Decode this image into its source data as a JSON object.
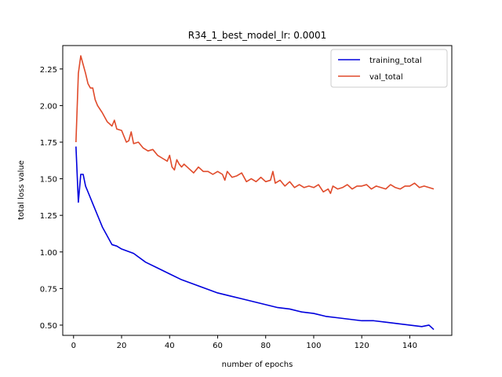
{
  "chart_data": {
    "type": "line",
    "title": "R34_1_best_model_lr: 0.0001",
    "xlabel": "number of epochs",
    "ylabel": "total loss value",
    "xlim": [
      -4.5,
      157.5
    ],
    "ylim": [
      0.43,
      2.41
    ],
    "xticks": [
      0,
      20,
      40,
      60,
      80,
      100,
      120,
      140
    ],
    "xtick_labels": [
      "0",
      "20",
      "40",
      "60",
      "80",
      "100",
      "120",
      "140"
    ],
    "yticks": [
      0.5,
      0.75,
      1.0,
      1.25,
      1.5,
      1.75,
      2.0,
      2.25
    ],
    "ytick_labels": [
      "0.50",
      "0.75",
      "1.00",
      "1.25",
      "1.50",
      "1.75",
      "2.00",
      "2.25"
    ],
    "grid": false,
    "legend_position": "top-right",
    "series": [
      {
        "name": "training_total",
        "color": "#0000dd",
        "x": [
          1,
          2,
          3,
          4,
          5,
          6,
          8,
          10,
          12,
          14,
          16,
          18,
          20,
          25,
          30,
          35,
          40,
          45,
          50,
          55,
          60,
          65,
          70,
          75,
          80,
          85,
          90,
          95,
          100,
          105,
          110,
          115,
          120,
          125,
          130,
          135,
          140,
          145,
          148,
          150
        ],
        "y": [
          1.72,
          1.34,
          1.53,
          1.53,
          1.45,
          1.41,
          1.33,
          1.25,
          1.17,
          1.11,
          1.05,
          1.04,
          1.02,
          0.99,
          0.93,
          0.89,
          0.85,
          0.81,
          0.78,
          0.75,
          0.72,
          0.7,
          0.68,
          0.66,
          0.64,
          0.62,
          0.61,
          0.59,
          0.58,
          0.56,
          0.55,
          0.54,
          0.53,
          0.53,
          0.52,
          0.51,
          0.5,
          0.49,
          0.5,
          0.47
        ]
      },
      {
        "name": "val_total",
        "color": "#e04a2a",
        "x": [
          1,
          2,
          3,
          4,
          5,
          6,
          7,
          8,
          9,
          10,
          12,
          14,
          16,
          17,
          18,
          20,
          22,
          23,
          24,
          25,
          27,
          29,
          31,
          33,
          35,
          37,
          39,
          40,
          41,
          42,
          43,
          44,
          45,
          46,
          48,
          50,
          52,
          54,
          56,
          58,
          60,
          62,
          63,
          64,
          66,
          68,
          70,
          72,
          74,
          76,
          78,
          80,
          82,
          83,
          84,
          86,
          88,
          90,
          92,
          94,
          96,
          98,
          100,
          102,
          104,
          106,
          107,
          108,
          110,
          112,
          114,
          116,
          118,
          120,
          122,
          124,
          126,
          128,
          130,
          132,
          134,
          136,
          138,
          140,
          142,
          144,
          146,
          148,
          150
        ],
        "y": [
          1.75,
          2.22,
          2.34,
          2.28,
          2.22,
          2.15,
          2.12,
          2.12,
          2.04,
          2.0,
          1.95,
          1.89,
          1.86,
          1.9,
          1.84,
          1.83,
          1.75,
          1.76,
          1.82,
          1.74,
          1.75,
          1.71,
          1.69,
          1.7,
          1.66,
          1.64,
          1.62,
          1.66,
          1.58,
          1.56,
          1.63,
          1.6,
          1.58,
          1.6,
          1.57,
          1.54,
          1.58,
          1.55,
          1.55,
          1.53,
          1.55,
          1.53,
          1.49,
          1.55,
          1.51,
          1.52,
          1.54,
          1.48,
          1.5,
          1.48,
          1.51,
          1.48,
          1.49,
          1.55,
          1.47,
          1.49,
          1.45,
          1.48,
          1.44,
          1.46,
          1.44,
          1.45,
          1.44,
          1.46,
          1.41,
          1.43,
          1.4,
          1.45,
          1.43,
          1.44,
          1.46,
          1.43,
          1.45,
          1.45,
          1.46,
          1.43,
          1.45,
          1.44,
          1.43,
          1.46,
          1.44,
          1.43,
          1.45,
          1.45,
          1.47,
          1.44,
          1.45,
          1.44,
          1.43
        ]
      }
    ]
  }
}
